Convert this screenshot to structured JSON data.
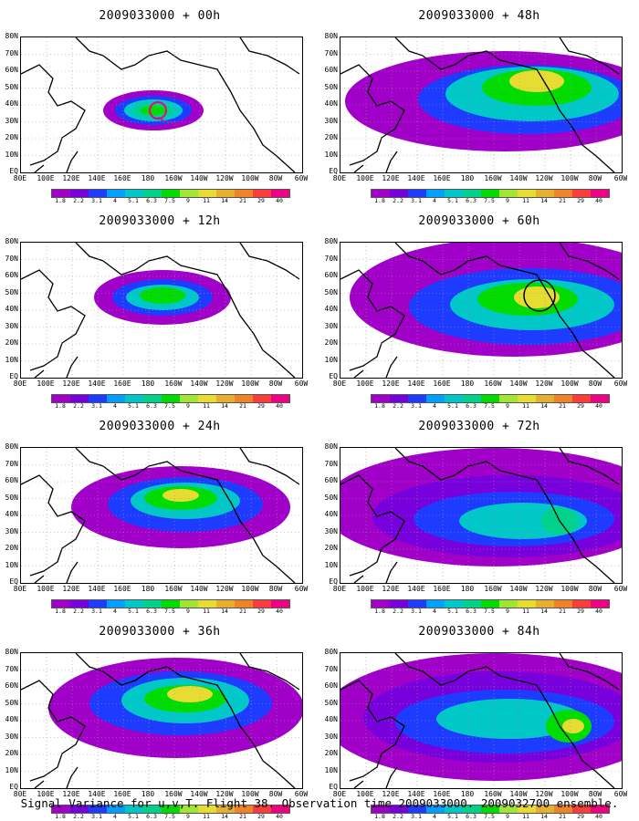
{
  "panels": [
    {
      "title": "2009033000 + 00h"
    },
    {
      "title": "2009033000 + 48h"
    },
    {
      "title": "2009033000 + 12h"
    },
    {
      "title": "2009033000 + 60h"
    },
    {
      "title": "2009033000 + 24h"
    },
    {
      "title": "2009033000 + 72h"
    },
    {
      "title": "2009033000 + 36h"
    },
    {
      "title": "2009033000 + 84h"
    }
  ],
  "lat_labels": [
    "80N",
    "70N",
    "60N",
    "50N",
    "40N",
    "30N",
    "20N",
    "10N",
    "EQ"
  ],
  "lon_labels": [
    "80E",
    "100E",
    "120E",
    "140E",
    "160E",
    "180",
    "160W",
    "140W",
    "120W",
    "100W",
    "80W",
    "60W"
  ],
  "colorbar": {
    "labels": [
      "1.8",
      "2.2",
      "3.1",
      "4",
      "5.1",
      "6.3",
      "7.5",
      "9",
      "11",
      "14",
      "21",
      "29",
      "40"
    ],
    "colors": [
      "#a000c8",
      "#7800dc",
      "#1e3cff",
      "#00a0ff",
      "#00c8c8",
      "#00d28c",
      "#00dc00",
      "#a0e632",
      "#e6dc32",
      "#e6af2d",
      "#f08228",
      "#fa3c3c",
      "#f00082"
    ]
  },
  "footer": "Signal Variance for u,v,T. Flight 38. Observation time 2009033000. 2009032700 ensemble."
}
